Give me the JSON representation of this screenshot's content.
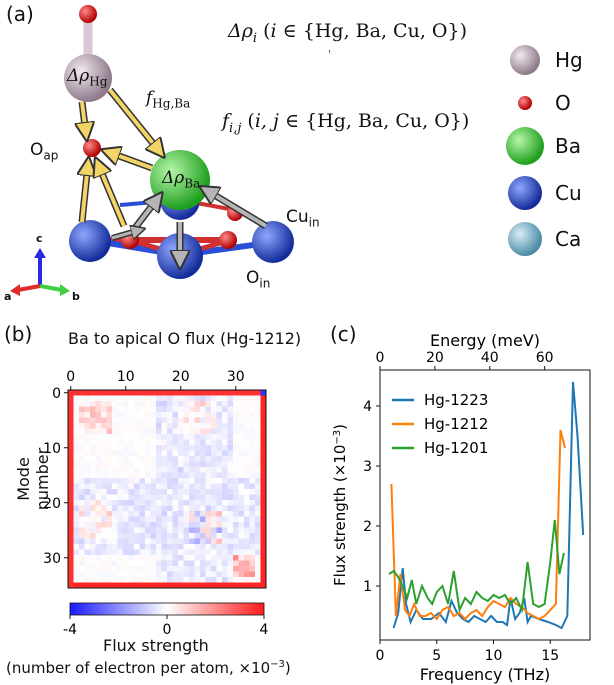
{
  "panel_a": {
    "label": "(a)",
    "eq_density": "Δρᵢ (i ∈ {Hg, Ba, Cu, O})",
    "eq_flux": "fᵢ,ⱼ (i, j ∈ {Hg, Ba, Cu, O})",
    "lbl_rho_hg": "ΔρHg",
    "lbl_rho_ba": "ΔρBa",
    "lbl_f_hgba": "fHg,Ba",
    "lbl_oap": "Oap",
    "lbl_cuin": "Cuin",
    "lbl_oin": "Oin",
    "axis_a": "a",
    "axis_b": "b",
    "axis_c": "c",
    "legend": [
      {
        "label": "Hg",
        "color": "#c9b3c4"
      },
      {
        "label": "O",
        "color": "#e52020"
      },
      {
        "label": "Ba",
        "color": "#3fd33f"
      },
      {
        "label": "Cu",
        "color": "#2a4fd6"
      },
      {
        "label": "Ca",
        "color": "#7fb5cc"
      }
    ]
  },
  "panel_b": {
    "label": "(b)",
    "title": "Ba to apical O flux (Hg-1212)",
    "ylabel": "Mode number",
    "xticks": [
      "0",
      "10",
      "20",
      "30"
    ],
    "yticks": [
      "0",
      "10",
      "20",
      "30"
    ],
    "colorbar_ticks": [
      "-4",
      "0",
      "4"
    ],
    "colorbar_label": "Flux strength",
    "colorbar_sublabel": "(number of electron per atom, ×10⁻³)",
    "colors": {
      "neg": "#1a1aff",
      "pos": "#ff1a1a"
    }
  },
  "panel_c": {
    "label": "(c)"
  },
  "chart_data": {
    "type": "line",
    "title": "",
    "xlabel": "Frequency (THz)",
    "x2label": "Energy (meV)",
    "ylabel": "Flux strength (×10⁻³)",
    "xlim": [
      0,
      18.5
    ],
    "ylim": [
      0.1,
      4.6
    ],
    "xticks": [
      0,
      5,
      10,
      15
    ],
    "x2ticks": [
      0,
      20,
      40,
      60
    ],
    "yticks": [
      1,
      2,
      3,
      4
    ],
    "legend_position": "upper-left",
    "series": [
      {
        "name": "Hg-1223",
        "color": "#1f77b4",
        "x": [
          1.2,
          1.6,
          2.0,
          2.3,
          2.7,
          3.2,
          3.8,
          4.5,
          5.2,
          5.8,
          6.3,
          6.8,
          7.3,
          7.8,
          8.3,
          8.8,
          9.3,
          9.8,
          10.3,
          10.8,
          11.2,
          11.5,
          11.9,
          12.3,
          12.7,
          13.0,
          13.3,
          14.0,
          14.8,
          15.5,
          16.0,
          16.5,
          17.0,
          17.4,
          17.9
        ],
        "y": [
          0.3,
          0.55,
          1.3,
          0.7,
          0.4,
          0.6,
          0.45,
          0.45,
          0.55,
          0.4,
          0.75,
          0.55,
          0.45,
          0.4,
          0.5,
          0.45,
          0.4,
          0.5,
          0.4,
          0.4,
          0.35,
          0.8,
          0.45,
          0.55,
          0.8,
          0.4,
          0.5,
          0.45,
          0.4,
          0.35,
          0.3,
          0.5,
          4.4,
          3.5,
          1.85
        ]
      },
      {
        "name": "Hg-1212",
        "color": "#ff7f0e",
        "x": [
          1.0,
          1.4,
          1.8,
          2.2,
          2.6,
          3.0,
          3.5,
          4.0,
          4.5,
          5.0,
          5.5,
          6.0,
          6.5,
          7.0,
          7.5,
          8.0,
          8.5,
          9.0,
          9.5,
          10.0,
          10.5,
          11.0,
          11.5,
          12.0,
          12.5,
          13.0,
          13.5,
          14.0,
          14.5,
          15.0,
          15.5,
          15.9,
          16.3
        ],
        "y": [
          2.7,
          0.5,
          1.2,
          0.6,
          0.5,
          0.7,
          0.5,
          0.5,
          0.55,
          0.45,
          0.6,
          0.65,
          0.5,
          0.55,
          0.45,
          0.55,
          0.6,
          0.5,
          0.65,
          0.75,
          0.7,
          0.65,
          0.8,
          0.7,
          0.65,
          0.55,
          0.5,
          0.45,
          0.5,
          0.6,
          0.7,
          3.6,
          3.3
        ]
      },
      {
        "name": "Hg-1201",
        "color": "#2ca02c",
        "x": [
          0.8,
          1.2,
          1.6,
          2.0,
          2.4,
          2.8,
          3.2,
          3.7,
          4.2,
          4.6,
          5.0,
          5.5,
          6.0,
          6.5,
          7.0,
          7.5,
          8.0,
          8.5,
          9.0,
          9.5,
          10.0,
          10.5,
          11.0,
          11.5,
          12.0,
          12.5,
          13.0,
          13.5,
          14.0,
          14.5,
          15.0,
          15.4,
          15.8,
          16.2
        ],
        "y": [
          1.2,
          1.25,
          1.15,
          1.0,
          0.8,
          1.1,
          0.7,
          1.0,
          0.8,
          0.7,
          0.9,
          1.0,
          0.7,
          1.25,
          0.6,
          0.8,
          0.7,
          0.9,
          0.8,
          0.75,
          0.85,
          0.8,
          0.85,
          0.7,
          0.8,
          0.6,
          1.4,
          0.7,
          0.65,
          0.7,
          1.4,
          2.1,
          1.2,
          1.55
        ]
      }
    ]
  }
}
